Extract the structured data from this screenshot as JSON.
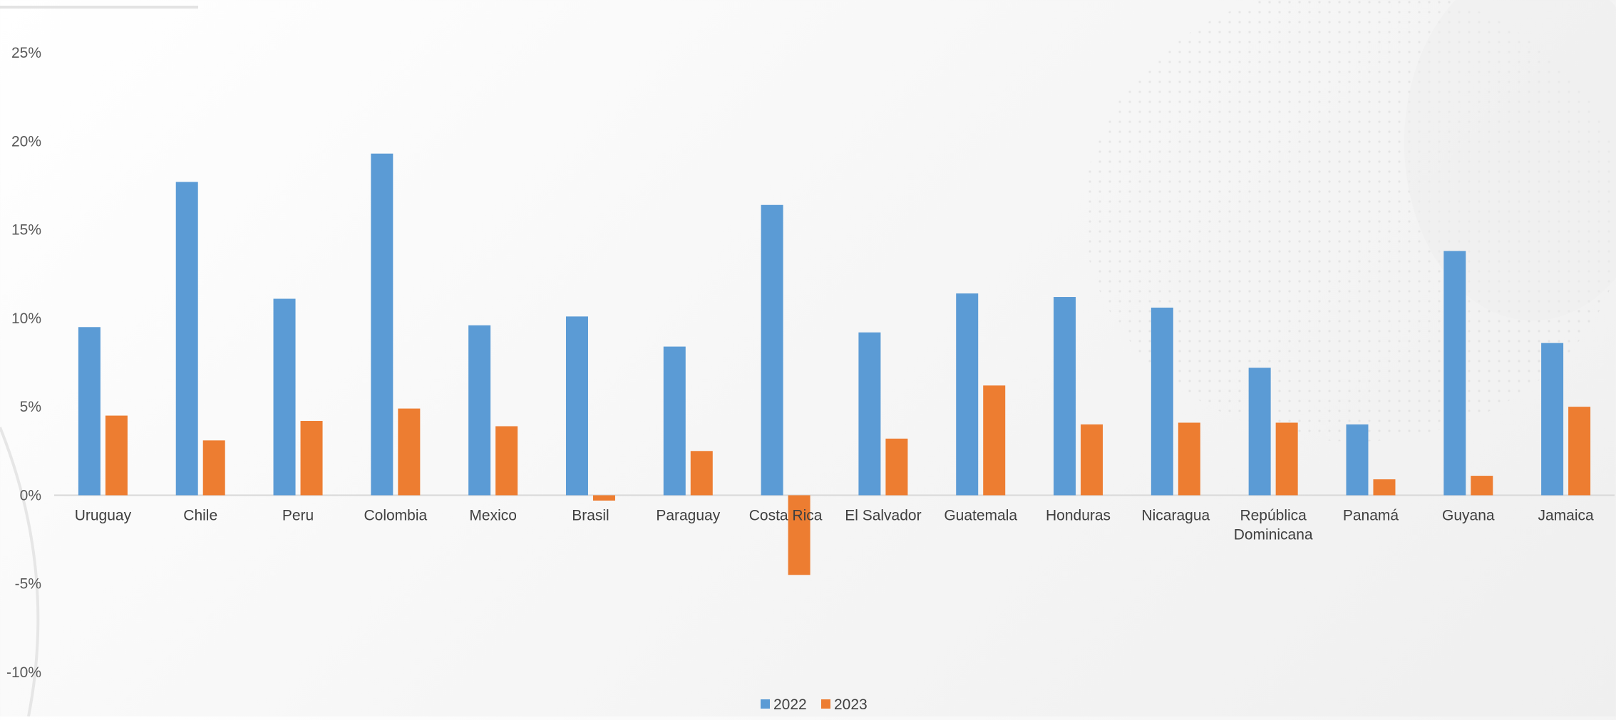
{
  "chart_data": {
    "type": "bar",
    "categories": [
      "Uruguay",
      "Chile",
      "Peru",
      "Colombia",
      "Mexico",
      "Brasil",
      "Paraguay",
      "Costa Rica",
      "El Salvador",
      "Guatemala",
      "Honduras",
      "Nicaragua",
      "República Dominicana",
      "Panamá",
      "Guyana",
      "Jamaica"
    ],
    "series": [
      {
        "name": "2022",
        "color": "#5B9BD5",
        "values": [
          9.5,
          17.7,
          11.1,
          19.3,
          9.6,
          10.1,
          8.4,
          16.4,
          9.2,
          11.4,
          11.2,
          10.6,
          7.2,
          4.0,
          13.8,
          8.6
        ]
      },
      {
        "name": "2023",
        "color": "#ED7D31",
        "values": [
          4.5,
          3.1,
          4.2,
          4.9,
          3.9,
          -0.3,
          2.5,
          -4.5,
          3.2,
          6.2,
          4.0,
          4.1,
          4.1,
          0.9,
          1.1,
          5.0
        ]
      }
    ],
    "yticks": [
      "25%",
      "20%",
      "15%",
      "10%",
      "5%",
      "0%",
      "-5%",
      "-10%"
    ],
    "ylim": [
      -10,
      25
    ],
    "grid": false,
    "legend_position": "bottom"
  }
}
